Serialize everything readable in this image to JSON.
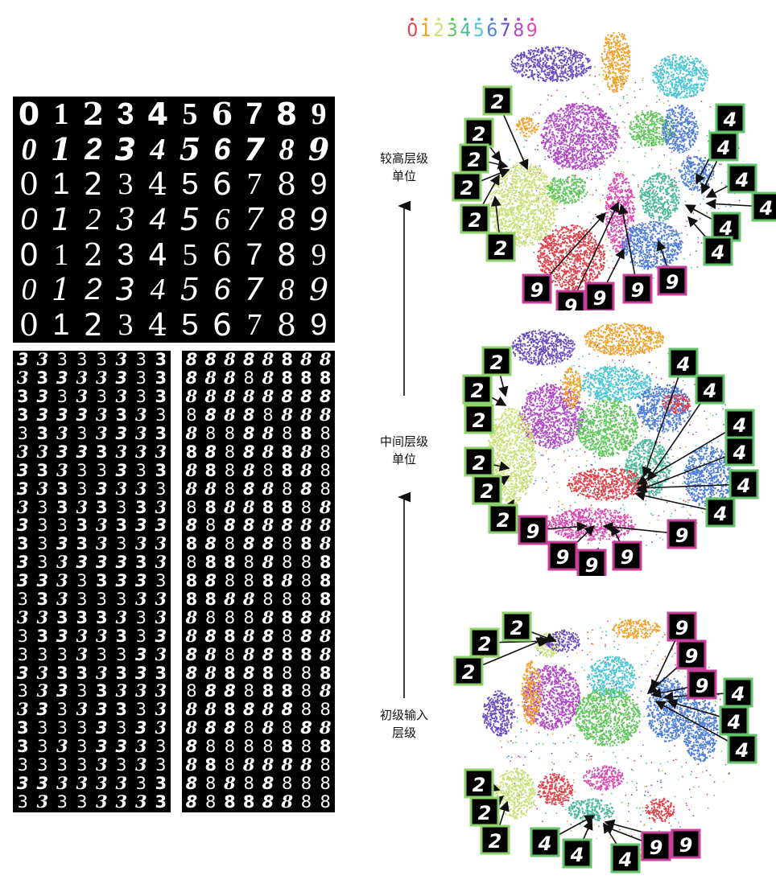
{
  "legend": {
    "labels": [
      "0",
      "1",
      "2",
      "3",
      "4",
      "5",
      "6",
      "7",
      "8",
      "9"
    ],
    "colors": [
      "#e0414a",
      "#f0a12c",
      "#cbe07a",
      "#5fc75a",
      "#4cb89a",
      "#4bc6d4",
      "#4f7fd8",
      "#6a4cc0",
      "#b04ac8",
      "#d84ab0"
    ]
  },
  "levels": {
    "high": [
      "较高层级",
      "单位"
    ],
    "mid": [
      "中间层级",
      "单位"
    ],
    "low": [
      "初级输入",
      "层级"
    ]
  },
  "digit_grid": {
    "rows": [
      [
        "0",
        "1",
        "2",
        "3",
        "4",
        "5",
        "6",
        "7",
        "8",
        "9"
      ],
      [
        "0",
        "1",
        "2",
        "3",
        "4",
        "5",
        "6",
        "7",
        "8",
        "9"
      ],
      [
        "0",
        "1",
        "2",
        "3",
        "4",
        "5",
        "6",
        "7",
        "8",
        "9"
      ],
      [
        "0",
        "1",
        "2",
        "3",
        "4",
        "5",
        "6",
        "7",
        "8",
        "9"
      ],
      [
        "0",
        "1",
        "2",
        "3",
        "4",
        "5",
        "6",
        "7",
        "8",
        "9"
      ],
      [
        "0",
        "1",
        "2",
        "3",
        "4",
        "5",
        "6",
        "7",
        "8",
        "9"
      ],
      [
        "0",
        "1",
        "2",
        "3",
        "4",
        "5",
        "6",
        "7",
        "8",
        "9"
      ]
    ]
  },
  "three_grid": {
    "digit": "3",
    "rows": 25,
    "cols": 8
  },
  "eight_grid": {
    "digit": "8",
    "rows": 25,
    "cols": 8
  },
  "maps": [
    {
      "name": "high",
      "callouts": [
        {
          "digit": "2",
          "kind": "two"
        },
        {
          "digit": "2",
          "kind": "two"
        },
        {
          "digit": "2",
          "kind": "two"
        },
        {
          "digit": "2",
          "kind": "two"
        },
        {
          "digit": "2",
          "kind": "two"
        },
        {
          "digit": "2",
          "kind": "two"
        },
        {
          "digit": "4",
          "kind": "four"
        },
        {
          "digit": "4",
          "kind": "four"
        },
        {
          "digit": "4",
          "kind": "four"
        },
        {
          "digit": "4",
          "kind": "four"
        },
        {
          "digit": "4",
          "kind": "four"
        },
        {
          "digit": "4",
          "kind": "four"
        },
        {
          "digit": "9",
          "kind": "nine"
        },
        {
          "digit": "9",
          "kind": "nine"
        },
        {
          "digit": "9",
          "kind": "nine"
        },
        {
          "digit": "9",
          "kind": "nine"
        },
        {
          "digit": "9",
          "kind": "nine"
        }
      ]
    },
    {
      "name": "mid",
      "callouts": [
        {
          "digit": "2",
          "kind": "two"
        },
        {
          "digit": "2",
          "kind": "two"
        },
        {
          "digit": "2",
          "kind": "two"
        },
        {
          "digit": "2",
          "kind": "two"
        },
        {
          "digit": "2",
          "kind": "two"
        },
        {
          "digit": "2",
          "kind": "two"
        },
        {
          "digit": "4",
          "kind": "four"
        },
        {
          "digit": "4",
          "kind": "four"
        },
        {
          "digit": "4",
          "kind": "four"
        },
        {
          "digit": "4",
          "kind": "four"
        },
        {
          "digit": "4",
          "kind": "four"
        },
        {
          "digit": "4",
          "kind": "four"
        },
        {
          "digit": "9",
          "kind": "nine"
        },
        {
          "digit": "9",
          "kind": "nine"
        },
        {
          "digit": "9",
          "kind": "nine"
        },
        {
          "digit": "9",
          "kind": "nine"
        },
        {
          "digit": "9",
          "kind": "nine"
        }
      ]
    },
    {
      "name": "low",
      "callouts": [
        {
          "digit": "2",
          "kind": "two"
        },
        {
          "digit": "2",
          "kind": "two"
        },
        {
          "digit": "2",
          "kind": "two"
        },
        {
          "digit": "2",
          "kind": "two"
        },
        {
          "digit": "2",
          "kind": "two"
        },
        {
          "digit": "2",
          "kind": "two"
        },
        {
          "digit": "9",
          "kind": "nine"
        },
        {
          "digit": "9",
          "kind": "nine"
        },
        {
          "digit": "9",
          "kind": "nine"
        },
        {
          "digit": "4",
          "kind": "four"
        },
        {
          "digit": "4",
          "kind": "four"
        },
        {
          "digit": "4",
          "kind": "four"
        },
        {
          "digit": "4",
          "kind": "four"
        },
        {
          "digit": "4",
          "kind": "four"
        },
        {
          "digit": "4",
          "kind": "four"
        },
        {
          "digit": "9",
          "kind": "nine"
        },
        {
          "digit": "9",
          "kind": "nine"
        }
      ]
    }
  ],
  "callout_colors": {
    "two": "#8ed06a",
    "four": "#63c36a",
    "nine": "#c8409a"
  }
}
